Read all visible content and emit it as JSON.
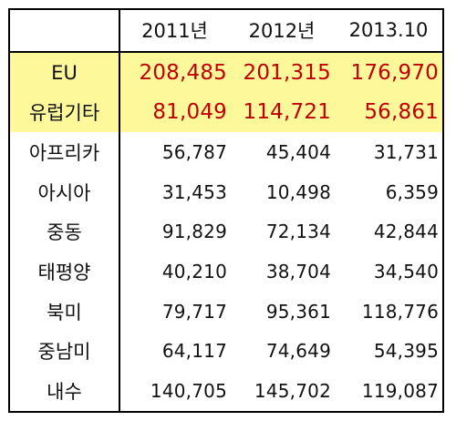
{
  "colors": {
    "highlight_bg": "#fdf99a",
    "highlight_text": "#c00000",
    "text": "#111111",
    "border": "#000000"
  },
  "table": {
    "header": {
      "corner": "",
      "years": [
        "2011년",
        "2012년",
        "2013.10"
      ]
    },
    "rows": [
      {
        "region": "EU",
        "values": [
          "208,485",
          "201,315",
          "176,970"
        ],
        "highlight": true
      },
      {
        "region": "유럽기타",
        "values": [
          "81,049",
          "114,721",
          "56,861"
        ],
        "highlight": true
      },
      {
        "region": "아프리카",
        "values": [
          "56,787",
          "45,404",
          "31,731"
        ],
        "highlight": false
      },
      {
        "region": "아시아",
        "values": [
          "31,453",
          "10,498",
          "6,359"
        ],
        "highlight": false
      },
      {
        "region": "중동",
        "values": [
          "91,829",
          "72,134",
          "42,844"
        ],
        "highlight": false
      },
      {
        "region": "태평양",
        "values": [
          "40,210",
          "38,704",
          "34,540"
        ],
        "highlight": false
      },
      {
        "region": "북미",
        "values": [
          "79,717",
          "95,361",
          "118,776"
        ],
        "highlight": false
      },
      {
        "region": "중남미",
        "values": [
          "64,117",
          "74,649",
          "54,395"
        ],
        "highlight": false
      },
      {
        "region": "내수",
        "values": [
          "140,705",
          "145,702",
          "119,087"
        ],
        "highlight": false
      }
    ]
  }
}
